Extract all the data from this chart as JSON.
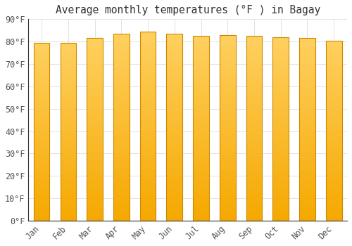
{
  "title": "Average monthly temperatures (°F ) in Bagay",
  "months": [
    "Jan",
    "Feb",
    "Mar",
    "Apr",
    "May",
    "Jun",
    "Jul",
    "Aug",
    "Sep",
    "Oct",
    "Nov",
    "Dec"
  ],
  "values": [
    79.5,
    79.5,
    81.5,
    83.5,
    84.5,
    83.5,
    82.5,
    83.0,
    82.5,
    82.0,
    81.5,
    80.5
  ],
  "bar_color_light": "#FFD060",
  "bar_color_dark": "#F5A800",
  "bar_edge_color": "#CC8800",
  "background_color": "#FFFFFF",
  "outer_background": "#FFFFFF",
  "grid_color": "#DDDDDD",
  "ylim": [
    0,
    90
  ],
  "ytick_step": 10,
  "title_fontsize": 10.5,
  "tick_fontsize": 8.5,
  "font_family": "monospace",
  "bar_width": 0.6,
  "spine_color": "#333333"
}
